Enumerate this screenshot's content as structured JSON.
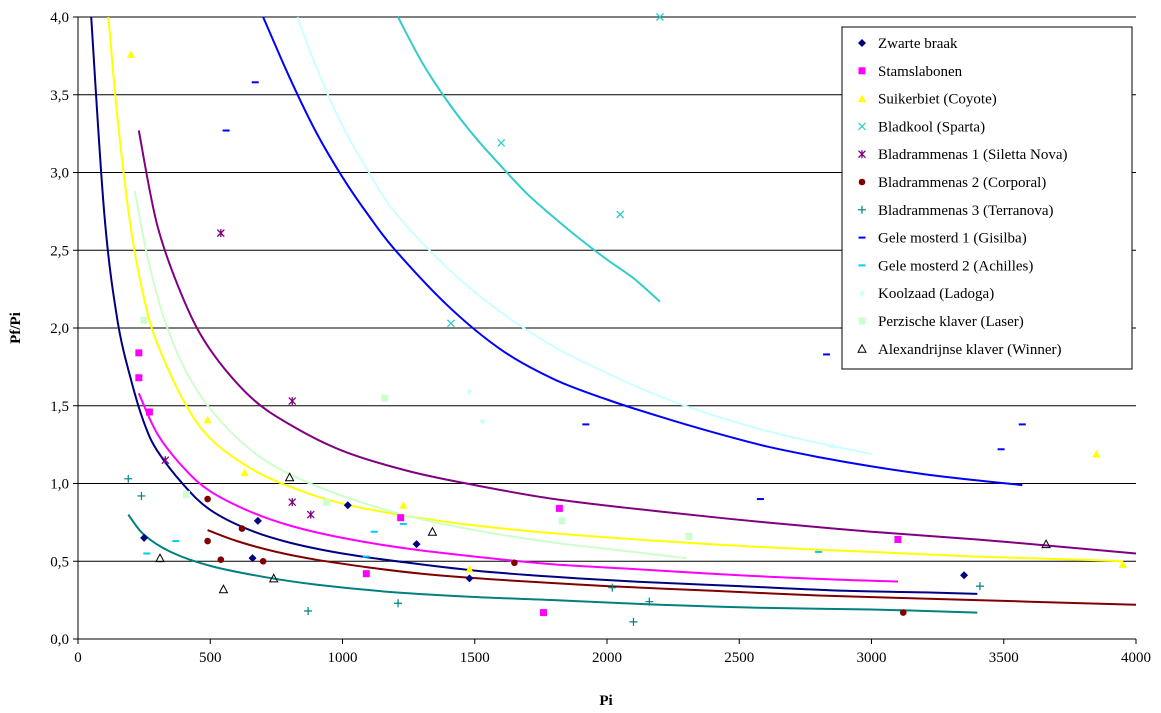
{
  "chart_data": {
    "type": "scatter",
    "xlabel": "Pi",
    "ylabel": "Pf/Pi",
    "xlim": [
      0,
      4000
    ],
    "ylim": [
      0,
      4.0
    ],
    "x_ticks": [
      "0",
      "500",
      "1000",
      "1500",
      "2000",
      "2500",
      "3000",
      "3500",
      "4000"
    ],
    "y_ticks": [
      "0,0",
      "0,5",
      "1,0",
      "1,5",
      "2,0",
      "2,5",
      "3,0",
      "3,5",
      "4,0"
    ],
    "grid": "horizontal",
    "legend_position": "top-right",
    "series": [
      {
        "name": "Zwarte braak",
        "color": "#000080",
        "marker": "diamond",
        "points": [
          [
            250,
            0.65
          ],
          [
            680,
            0.76
          ],
          [
            660,
            0.52
          ],
          [
            1020,
            0.86
          ],
          [
            1280,
            0.61
          ],
          [
            1480,
            0.39
          ],
          [
            3350,
            0.41
          ]
        ],
        "curve": {
          "x": [
            50,
            100,
            150,
            200,
            250,
            300,
            400,
            500,
            650,
            800,
            1000,
            1250,
            1500,
            1800,
            2100,
            2500,
            2900,
            3200,
            3400
          ],
          "y": [
            4.0,
            2.72,
            2.04,
            1.67,
            1.39,
            1.21,
            0.99,
            0.83,
            0.7,
            0.62,
            0.55,
            0.49,
            0.44,
            0.4,
            0.37,
            0.34,
            0.31,
            0.3,
            0.29
          ]
        }
      },
      {
        "name": "Stamslabonen",
        "color": "#FF00FF",
        "marker": "square",
        "points": [
          [
            230,
            1.84
          ],
          [
            230,
            1.68
          ],
          [
            270,
            1.46
          ],
          [
            1090,
            0.42
          ],
          [
            1220,
            0.78
          ],
          [
            1760,
            0.17
          ],
          [
            1820,
            0.84
          ],
          [
            3100,
            0.64
          ]
        ],
        "curve": {
          "x": [
            230,
            300,
            400,
            500,
            650,
            800,
            1000,
            1250,
            1500,
            1800,
            2100,
            2500,
            2900,
            3100
          ],
          "y": [
            1.58,
            1.32,
            1.1,
            0.95,
            0.82,
            0.73,
            0.65,
            0.58,
            0.53,
            0.48,
            0.45,
            0.41,
            0.38,
            0.37
          ]
        }
      },
      {
        "name": "Suikerbiet (Coyote)",
        "color": "#FFFF00",
        "marker": "triangle",
        "points": [
          [
            200,
            3.76
          ],
          [
            490,
            1.41
          ],
          [
            630,
            1.07
          ],
          [
            1230,
            0.86
          ],
          [
            1480,
            0.45
          ],
          [
            3850,
            1.19
          ],
          [
            3950,
            0.48
          ]
        ],
        "curve": {
          "x": [
            115,
            150,
            200,
            250,
            300,
            400,
            500,
            650,
            800,
            1000,
            1250,
            1500,
            1800,
            2200,
            2600,
            3000,
            3400,
            3800,
            3950
          ],
          "y": [
            4.0,
            3.34,
            2.64,
            2.19,
            1.9,
            1.53,
            1.29,
            1.1,
            0.98,
            0.87,
            0.79,
            0.73,
            0.68,
            0.63,
            0.59,
            0.56,
            0.53,
            0.51,
            0.5
          ]
        }
      },
      {
        "name": "Bladkool (Sparta)",
        "color": "#33CCCC",
        "marker": "x",
        "points": [
          [
            2200,
            4.0
          ],
          [
            1600,
            3.19
          ],
          [
            2050,
            2.73
          ],
          [
            1410,
            2.03
          ]
        ],
        "curve": {
          "x": [
            1210,
            1300,
            1400,
            1500,
            1600,
            1700,
            1800,
            1900,
            2000,
            2100,
            2200
          ],
          "y": [
            4.0,
            3.71,
            3.45,
            3.23,
            3.04,
            2.86,
            2.71,
            2.57,
            2.44,
            2.32,
            2.17
          ]
        }
      },
      {
        "name": "Bladrammenas 1 (Siletta Nova)",
        "color": "#800080",
        "marker": "asterisk",
        "points": [
          [
            540,
            2.61
          ],
          [
            330,
            1.15
          ],
          [
            810,
            1.53
          ],
          [
            810,
            0.88
          ],
          [
            880,
            0.8
          ]
        ],
        "curve": {
          "x": [
            230,
            300,
            400,
            500,
            650,
            800,
            1000,
            1250,
            1500,
            1800,
            2200,
            2600,
            3000,
            3400,
            3800,
            4000
          ],
          "y": [
            3.27,
            2.66,
            2.18,
            1.86,
            1.56,
            1.38,
            1.21,
            1.08,
            0.99,
            0.9,
            0.82,
            0.75,
            0.69,
            0.64,
            0.58,
            0.55
          ]
        }
      },
      {
        "name": "Bladrammenas 2 (Corporal)",
        "color": "#800000",
        "marker": "circle",
        "points": [
          [
            490,
            0.9
          ],
          [
            490,
            0.63
          ],
          [
            540,
            0.51
          ],
          [
            620,
            0.71
          ],
          [
            700,
            0.5
          ],
          [
            1650,
            0.49
          ],
          [
            3120,
            0.17
          ]
        ],
        "curve": {
          "x": [
            490,
            600,
            750,
            900,
            1100,
            1300,
            1600,
            2000,
            2400,
            2800,
            3200,
            3600,
            4000
          ],
          "y": [
            0.7,
            0.63,
            0.56,
            0.51,
            0.46,
            0.42,
            0.38,
            0.34,
            0.31,
            0.28,
            0.26,
            0.24,
            0.22
          ]
        }
      },
      {
        "name": "Bladrammenas 3 (Terranova)",
        "color": "#008080",
        "marker": "plus",
        "points": [
          [
            190,
            1.03
          ],
          [
            240,
            0.92
          ],
          [
            870,
            0.18
          ],
          [
            1210,
            0.23
          ],
          [
            2020,
            0.33
          ],
          [
            2100,
            0.11
          ],
          [
            2160,
            0.24
          ],
          [
            3410,
            0.34
          ]
        ],
        "curve": {
          "x": [
            190,
            250,
            350,
            500,
            700,
            900,
            1200,
            1500,
            1800,
            2200,
            2600,
            3000,
            3400
          ],
          "y": [
            0.8,
            0.67,
            0.56,
            0.47,
            0.4,
            0.35,
            0.3,
            0.27,
            0.25,
            0.22,
            0.2,
            0.19,
            0.17
          ]
        }
      },
      {
        "name": "Gele mosterd 1 (Gisilba)",
        "color": "#0000FF",
        "marker": "dash",
        "points": [
          [
            670,
            3.58
          ],
          [
            560,
            3.27
          ],
          [
            2830,
            1.83
          ],
          [
            3490,
            1.22
          ],
          [
            3570,
            1.38
          ],
          [
            1920,
            1.38
          ],
          [
            2580,
            0.9
          ]
        ],
        "curve": {
          "x": [
            700,
            800,
            900,
            1000,
            1100,
            1200,
            1400,
            1600,
            1800,
            2000,
            2200,
            2400,
            2600,
            2800,
            3000,
            3200,
            3400,
            3570
          ],
          "y": [
            4.0,
            3.61,
            3.26,
            2.97,
            2.72,
            2.5,
            2.14,
            1.86,
            1.67,
            1.54,
            1.43,
            1.33,
            1.24,
            1.17,
            1.11,
            1.06,
            1.02,
            0.99
          ]
        }
      },
      {
        "name": "Gele mosterd 2 (Achilles)",
        "color": "#00CCFF",
        "marker": "dash",
        "points": [
          [
            260,
            0.55
          ],
          [
            370,
            0.63
          ],
          [
            1120,
            0.69
          ],
          [
            1230,
            0.74
          ],
          [
            1090,
            0.53
          ],
          [
            2800,
            0.56
          ]
        ],
        "curve": null
      },
      {
        "name": "Koolzaad (Ladoga)",
        "color": "#CCFFFF",
        "marker": "dot",
        "points": [
          [
            1480,
            1.59
          ],
          [
            1530,
            1.4
          ],
          [
            2850,
            1.24
          ]
        ],
        "curve": {
          "x": [
            830,
            900,
            1000,
            1100,
            1200,
            1400,
            1600,
            1800,
            2000,
            2200,
            2400,
            2600,
            2800,
            3000
          ],
          "y": [
            4.0,
            3.68,
            3.3,
            3.0,
            2.74,
            2.38,
            2.1,
            1.88,
            1.71,
            1.56,
            1.44,
            1.34,
            1.26,
            1.19
          ]
        }
      },
      {
        "name": "Perzische klaver (Laser)",
        "color": "#CCFFCC",
        "marker": "square",
        "points": [
          [
            250,
            2.05
          ],
          [
            410,
            0.93
          ],
          [
            940,
            0.88
          ],
          [
            1160,
            1.55
          ],
          [
            1830,
            0.76
          ],
          [
            2310,
            0.66
          ]
        ],
        "curve": {
          "x": [
            215,
            260,
            320,
            400,
            500,
            650,
            800,
            1000,
            1250,
            1500,
            1800,
            2100,
            2300
          ],
          "y": [
            2.88,
            2.48,
            2.09,
            1.75,
            1.48,
            1.22,
            1.06,
            0.92,
            0.79,
            0.7,
            0.62,
            0.56,
            0.52
          ]
        }
      },
      {
        "name": "Alexandrijnse klaver (Winner)",
        "color": "#000000",
        "marker": "triangle-open",
        "points": [
          [
            310,
            0.52
          ],
          [
            550,
            0.32
          ],
          [
            740,
            0.39
          ],
          [
            800,
            1.04
          ],
          [
            1340,
            0.69
          ],
          [
            3660,
            0.61
          ]
        ],
        "curve": null
      }
    ]
  }
}
